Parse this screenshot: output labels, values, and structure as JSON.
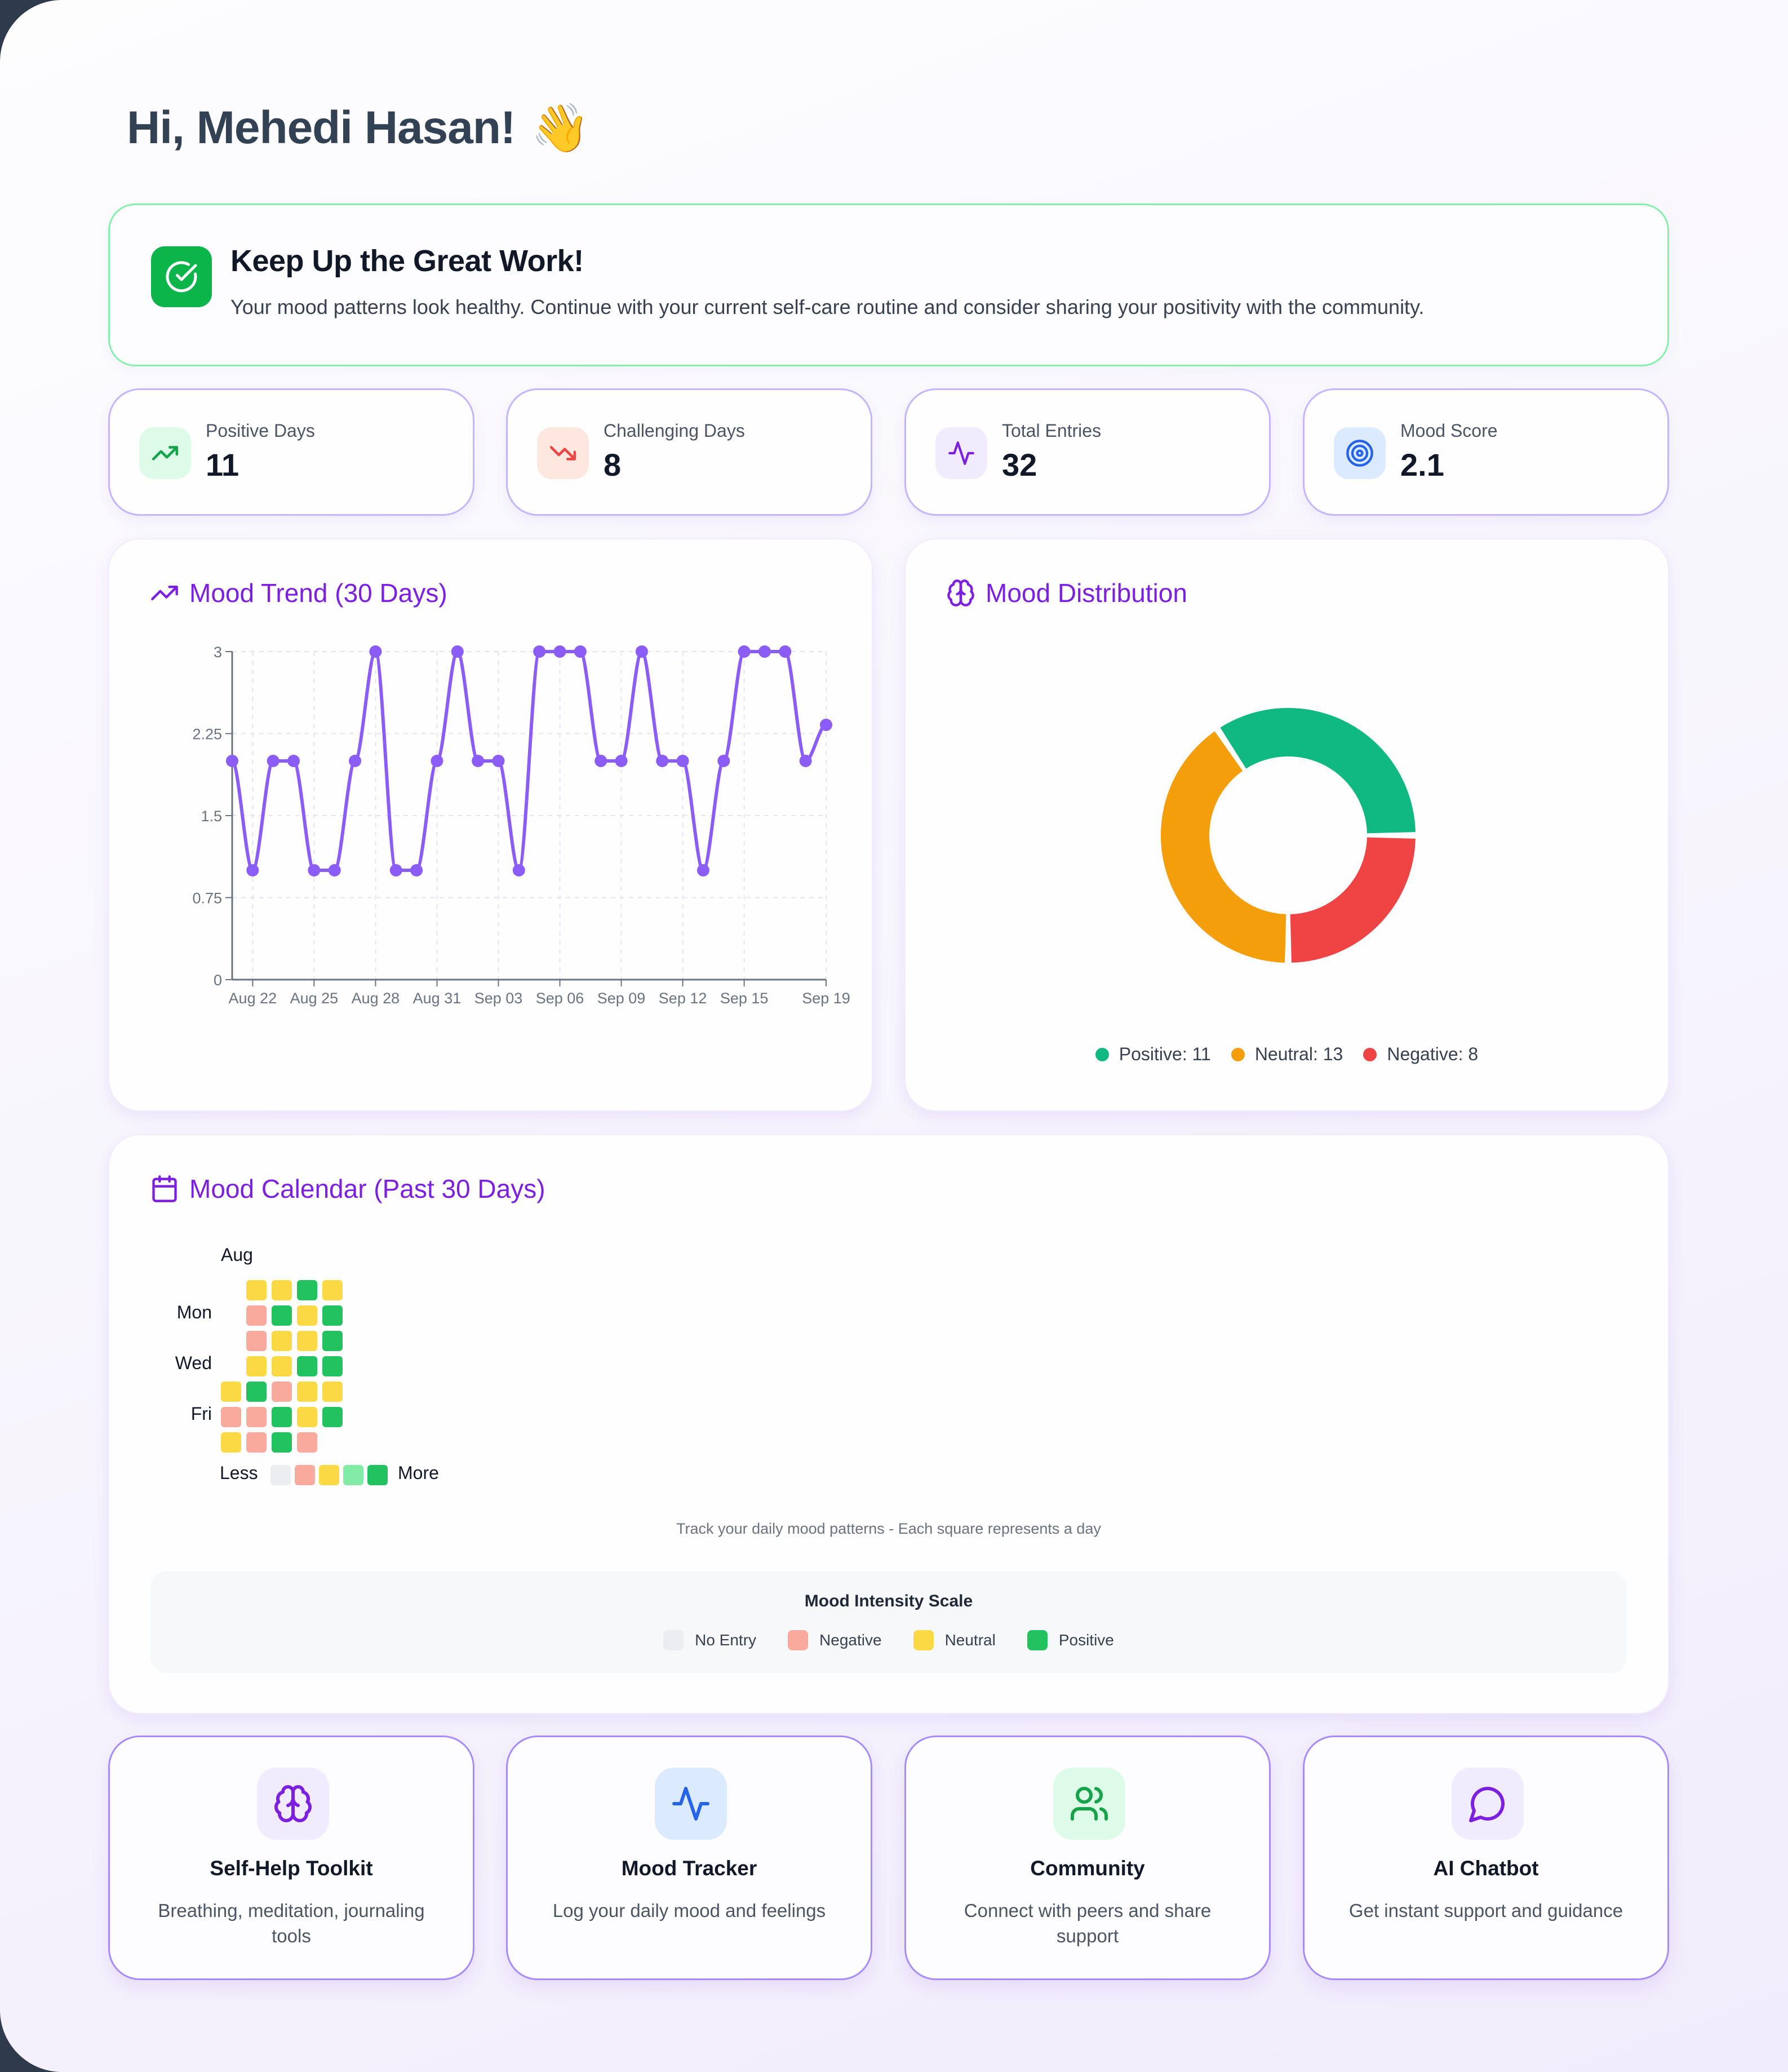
{
  "greeting": {
    "text": "Hi, Mehedi Hasan!",
    "emoji": "👋"
  },
  "banner": {
    "icon": "check-circle-icon",
    "title": "Keep Up the Great Work!",
    "text": "Your mood patterns look healthy. Continue with your current self-care routine and consider sharing your positivity with the community.",
    "accent": "#0bb54a"
  },
  "stats": [
    {
      "label": "Positive Days",
      "value": "11",
      "icon": "trending-up-icon",
      "icon_color": "#16a34a",
      "bg": "#dcfce7"
    },
    {
      "label": "Challenging Days",
      "value": "8",
      "icon": "trending-down-icon",
      "icon_color": "#ef4444",
      "bg": "#fde7df"
    },
    {
      "label": "Total Entries",
      "value": "32",
      "icon": "activity-icon",
      "icon_color": "#7c1fe0",
      "bg": "#f1ecfd"
    },
    {
      "label": "Mood Score",
      "value": "2.1",
      "icon": "target-icon",
      "icon_color": "#2563eb",
      "bg": "#dbeafe"
    }
  ],
  "trend": {
    "title": "Mood Trend (30 Days)",
    "icon": "trending-up-icon"
  },
  "distribution": {
    "title": "Mood Distribution",
    "icon": "brain-icon",
    "legend": [
      {
        "label": "Positive: 11",
        "color": "#10b981"
      },
      {
        "label": "Neutral: 13",
        "color": "#f59e0b"
      },
      {
        "label": "Negative: 8",
        "color": "#ef4444"
      }
    ]
  },
  "calendar": {
    "title": "Mood Calendar (Past 30 Days)",
    "icon": "calendar-icon",
    "month_label": "Aug",
    "day_labels": [
      "Mon",
      "Wed",
      "Fri"
    ],
    "less_label": "Less",
    "more_label": "More",
    "grid": [
      [
        "",
        "neutral",
        "neutral",
        "positive",
        "neutral"
      ],
      [
        "",
        "negative",
        "positive",
        "neutral",
        "positive"
      ],
      [
        "",
        "negative",
        "neutral",
        "neutral",
        "positive"
      ],
      [
        "",
        "neutral",
        "neutral",
        "positive",
        "positive"
      ],
      [
        "neutral",
        "positive",
        "negative",
        "neutral",
        "neutral"
      ],
      [
        "negative",
        "negative",
        "positive",
        "neutral",
        "positive"
      ],
      [
        "neutral",
        "negative",
        "positive",
        "negative",
        ""
      ]
    ],
    "scale_swatches": [
      "#ebedf0",
      "#f8ab9d",
      "#fbd945",
      "#82eba6",
      "#22c35e"
    ],
    "caption": "Track your daily mood patterns - Each square represents a day",
    "intensity": {
      "title": "Mood Intensity Scale",
      "items": [
        {
          "label": "No Entry",
          "color": "#ebedf0"
        },
        {
          "label": "Negative",
          "color": "#f8ab9d"
        },
        {
          "label": "Neutral",
          "color": "#fbd945"
        },
        {
          "label": "Positive",
          "color": "#22c35e"
        }
      ]
    }
  },
  "actions": [
    {
      "title": "Self-Help Toolkit",
      "desc": "Breathing, meditation, journaling tools",
      "icon": "brain-icon",
      "icon_color": "#7c1fe0",
      "bg": "#f1ecfd"
    },
    {
      "title": "Mood Tracker",
      "desc": "Log your daily mood and feelings",
      "icon": "activity-icon",
      "icon_color": "#2563eb",
      "bg": "#dbeafe"
    },
    {
      "title": "Community",
      "desc": "Connect with peers and share support",
      "icon": "users-icon",
      "icon_color": "#16a34a",
      "bg": "#dcfce7"
    },
    {
      "title": "AI Chatbot",
      "desc": "Get instant support and guidance",
      "icon": "message-circle-icon",
      "icon_color": "#7c1fe0",
      "bg": "#f1ecfd"
    }
  ],
  "chart_data": [
    {
      "type": "line",
      "title": "Mood Trend (30 Days)",
      "xlabel": "",
      "ylabel": "",
      "ylim": [
        0,
        3
      ],
      "yticks": [
        "0",
        "0.75",
        "1.5",
        "2.25",
        "3"
      ],
      "xticks": [
        "Aug 22",
        "Aug 25",
        "Aug 28",
        "Aug 31",
        "Sep 03",
        "Sep 06",
        "Sep 09",
        "Sep 12",
        "Sep 15",
        "Sep 19"
      ],
      "grid": true,
      "x": [
        "Aug 21",
        "Aug 22",
        "Aug 23",
        "Aug 24",
        "Aug 25",
        "Aug 26",
        "Aug 27",
        "Aug 28",
        "Aug 29",
        "Aug 30",
        "Aug 31",
        "Sep 01",
        "Sep 02",
        "Sep 03",
        "Sep 04",
        "Sep 05",
        "Sep 06",
        "Sep 07",
        "Sep 08",
        "Sep 09",
        "Sep 10",
        "Sep 11",
        "Sep 12",
        "Sep 13",
        "Sep 14",
        "Sep 15",
        "Sep 16",
        "Sep 17",
        "Sep 18",
        "Sep 19"
      ],
      "series": [
        {
          "name": "Mood",
          "color": "#8b5cf6",
          "values": [
            2,
            1,
            2,
            2,
            1,
            1,
            2,
            3,
            1,
            1,
            2,
            3,
            2,
            2,
            1,
            3,
            3,
            3,
            2,
            2,
            3,
            2,
            2,
            1,
            2,
            3,
            3,
            3,
            2,
            2.33
          ]
        }
      ]
    },
    {
      "type": "pie",
      "title": "Mood Distribution",
      "categories": [
        "Positive",
        "Neutral",
        "Negative"
      ],
      "values": [
        11,
        13,
        8
      ],
      "colors": [
        "#10b981",
        "#f59e0b",
        "#ef4444"
      ],
      "donut": true,
      "legend_position": "bottom"
    }
  ]
}
